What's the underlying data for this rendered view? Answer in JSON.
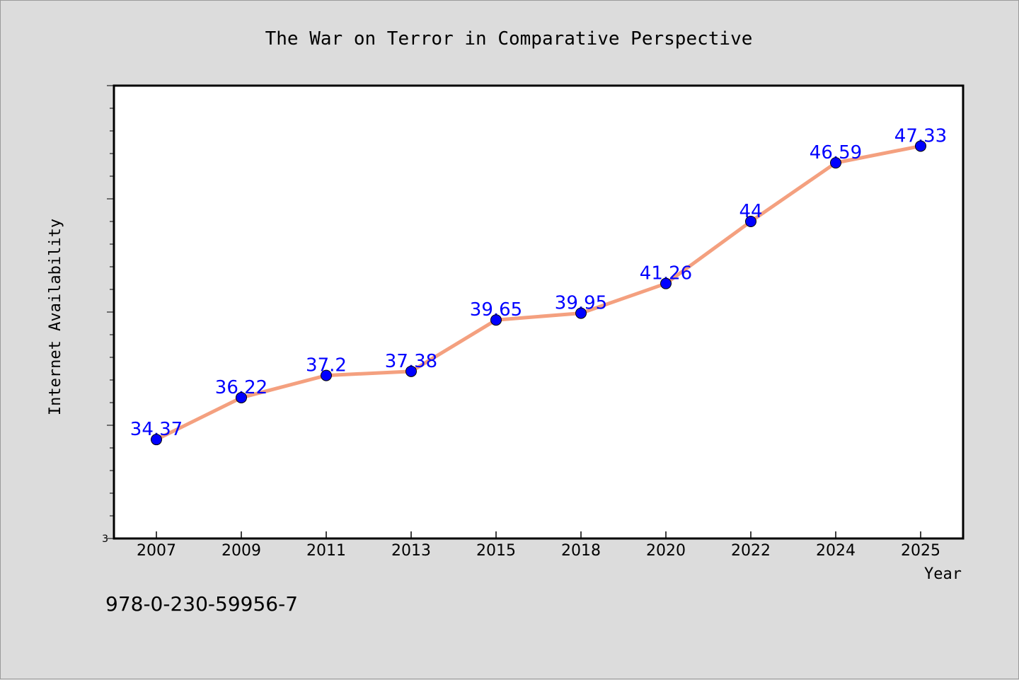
{
  "footer": {
    "code": "978-0-230-59956-7"
  },
  "colors": {
    "background": "#dcdcdc",
    "plot_background": "#ffffff",
    "line": "#f4a07f",
    "marker": "#0000ff",
    "data_label": "#0000ff"
  },
  "chart_data": {
    "type": "line",
    "title": "The War on Terror in Comparative Perspective",
    "xlabel": "Year",
    "ylabel": "Internet Availability",
    "categories": [
      "2007",
      "2009",
      "2011",
      "2013",
      "2015",
      "2018",
      "2020",
      "2022",
      "2024",
      "2025"
    ],
    "series": [
      {
        "values": [
          34.37,
          36.22,
          37.2,
          37.38,
          39.65,
          39.95,
          41.26,
          44,
          46.59,
          47.33
        ]
      }
    ],
    "data_labels": [
      "34.37",
      "36.22",
      "37.2",
      "37.38",
      "39.65",
      "39.95",
      "41.26",
      "44",
      "46.59",
      "47.33"
    ],
    "ytick_labels": [
      "3"
    ],
    "ylim": [
      30,
      50
    ],
    "grid": false,
    "legend": "none"
  }
}
